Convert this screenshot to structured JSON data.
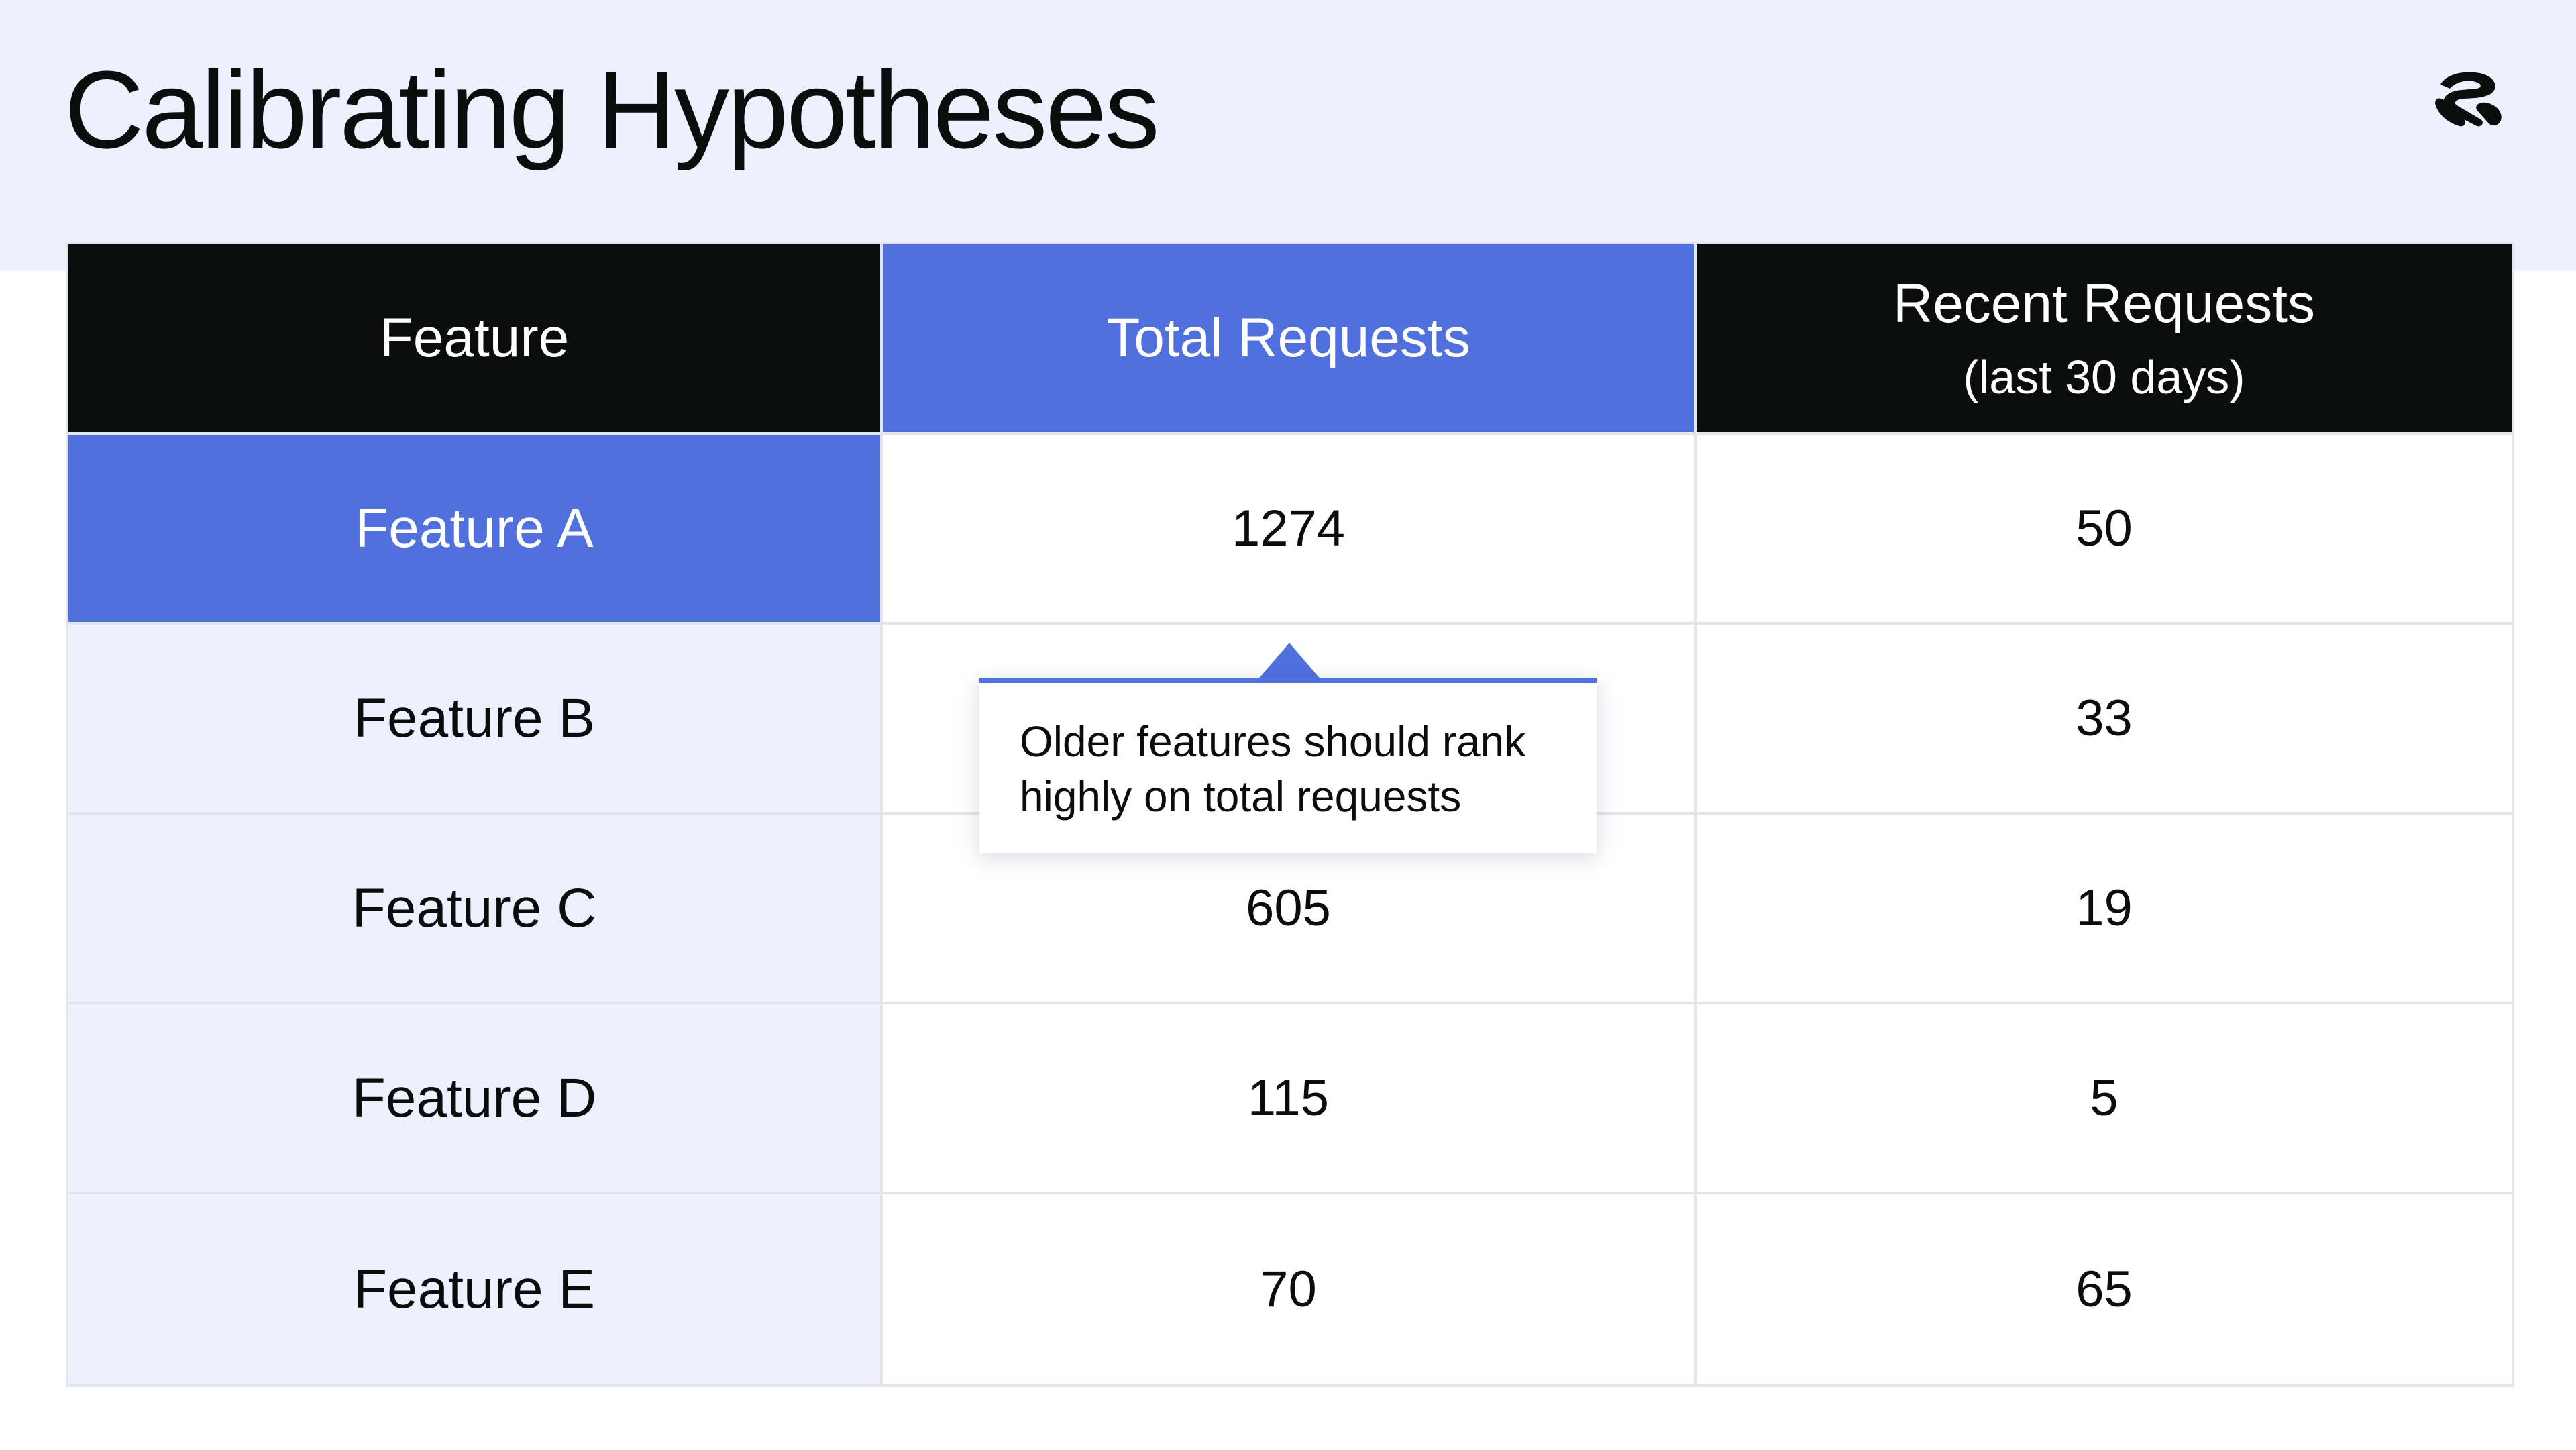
{
  "slide": {
    "title": "Calibrating Hypotheses"
  },
  "logo": {
    "icon": "brand-logo-icon"
  },
  "table": {
    "headers": [
      {
        "label": "Feature",
        "sublabel": ""
      },
      {
        "label": "Total Requests",
        "sublabel": ""
      },
      {
        "label": "Recent Requests",
        "sublabel": "(last 30 days)"
      }
    ],
    "rows": [
      {
        "feature": "Feature A",
        "total": "1274",
        "recent": "50"
      },
      {
        "feature": "Feature B",
        "total": "",
        "recent": "33"
      },
      {
        "feature": "Feature C",
        "total": "605",
        "recent": "19"
      },
      {
        "feature": "Feature D",
        "total": "115",
        "recent": "5"
      },
      {
        "feature": "Feature E",
        "total": "70",
        "recent": "65"
      }
    ],
    "highlighted_row": "Feature A",
    "highlighted_column": "Total Requests"
  },
  "callout": {
    "line1": "Older features should rank",
    "line2": "highly on total requests"
  },
  "colors": {
    "accent": "#5070dd",
    "header_dark": "#0a0d0c",
    "band": "#eef1fd",
    "grid": "#e3e5ea"
  }
}
